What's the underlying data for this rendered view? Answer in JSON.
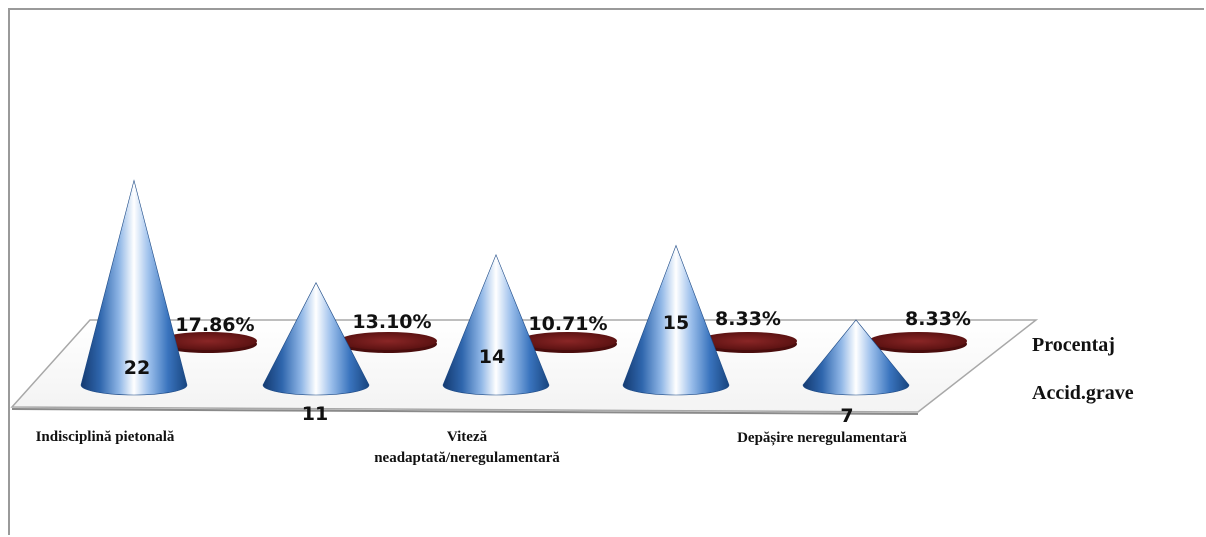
{
  "chart_data": {
    "type": "bar",
    "title": "",
    "categories": [
      "Indisciplină pietonală",
      "",
      "Viteză neadaptată/neregulamentară",
      "",
      "Depășire neregulamentară"
    ],
    "category_label_lines": [
      [
        "Indisciplină pietonală"
      ],
      [
        ""
      ],
      [
        "Viteză",
        "neadaptată/neregulamentară"
      ],
      [
        ""
      ],
      [
        "Depășire neregulamentară"
      ]
    ],
    "series": [
      {
        "name": "Accid.grave",
        "values": [
          22,
          11,
          14,
          15,
          7
        ],
        "value_labels": [
          "22",
          "11",
          "14",
          "15",
          "7"
        ],
        "color": "#2e62a8"
      },
      {
        "name": "Procentaj",
        "values": [
          17.86,
          13.1,
          10.71,
          8.33,
          8.33
        ],
        "value_labels": [
          "17.86%",
          "13.10%",
          "10.71%",
          "8.33%",
          "8.33%"
        ],
        "color": "#7f1d1d"
      }
    ],
    "shape": "cone-3d",
    "grid": false,
    "legend": "series names on depth axis, right"
  }
}
